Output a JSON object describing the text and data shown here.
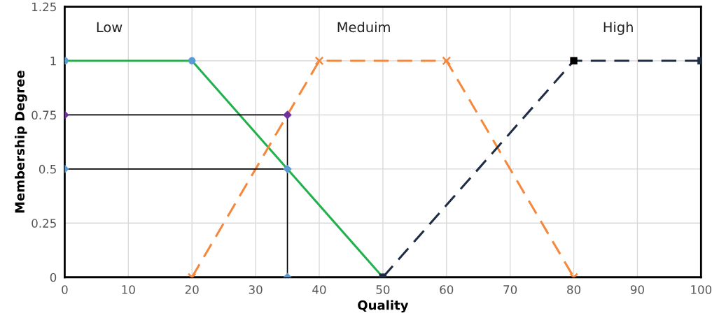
{
  "chart_data": {
    "type": "line",
    "xlabel": "Quality",
    "ylabel": "Membership Degree",
    "xlim": [
      0,
      100
    ],
    "ylim": [
      0,
      1.25
    ],
    "xticks": [
      0,
      10,
      20,
      30,
      40,
      50,
      60,
      70,
      80,
      90,
      100
    ],
    "yticks": [
      0,
      {
        "value": 0.25,
        "label": "0.25"
      },
      {
        "value": 0.5,
        "label": "0.5"
      },
      {
        "value": 0.75,
        "label": "0.75"
      },
      1,
      {
        "value": 1.25,
        "label": "1.25"
      }
    ],
    "grid": true,
    "series": [
      {
        "name": "Low",
        "color": "#22b14c",
        "colors": [
          "#5b9bd5",
          "#5b9bd5",
          "#4a7a8c"
        ],
        "marker": "circle",
        "line_style": "solid",
        "x": [
          0,
          20,
          50
        ],
        "values": [
          1,
          1,
          0
        ]
      },
      {
        "name": "Meduim",
        "type": "line",
        "color": "#f4883c",
        "marker": "cross",
        "line_style": "dashed",
        "x": [
          20,
          40,
          60,
          80
        ],
        "values": [
          0,
          1,
          1,
          0
        ]
      },
      {
        "name": "High",
        "type": "line",
        "color": "#1f2d44",
        "marker": "square",
        "line_style": "dashed",
        "x": [
          50,
          80,
          100
        ],
        "values": [
          0,
          1,
          1
        ],
        "colors": [
          "#1f2d44",
          "#000000",
          "#1f2d44"
        ]
      },
      {
        "color": "#000000",
        "marker": "none",
        "line_style": "solid",
        "x": [
          0,
          35,
          35
        ],
        "values": [
          0.75,
          0.75,
          0
        ]
      },
      {
        "type": "line",
        "color": "#000000",
        "marker": "none",
        "line_style": "solid",
        "x": [
          0,
          35
        ],
        "values": [
          0.5,
          0.5
        ]
      },
      {
        "type": "scatter",
        "color": "#7030a0",
        "marker": "diamond",
        "x": [
          0,
          35
        ],
        "values": [
          0.75,
          0.75
        ]
      },
      {
        "type": "scatter",
        "color": "#5b9bd5",
        "marker": "diamond",
        "x": [
          0,
          35,
          35
        ],
        "values": [
          0.5,
          0.5,
          0
        ]
      }
    ]
  }
}
